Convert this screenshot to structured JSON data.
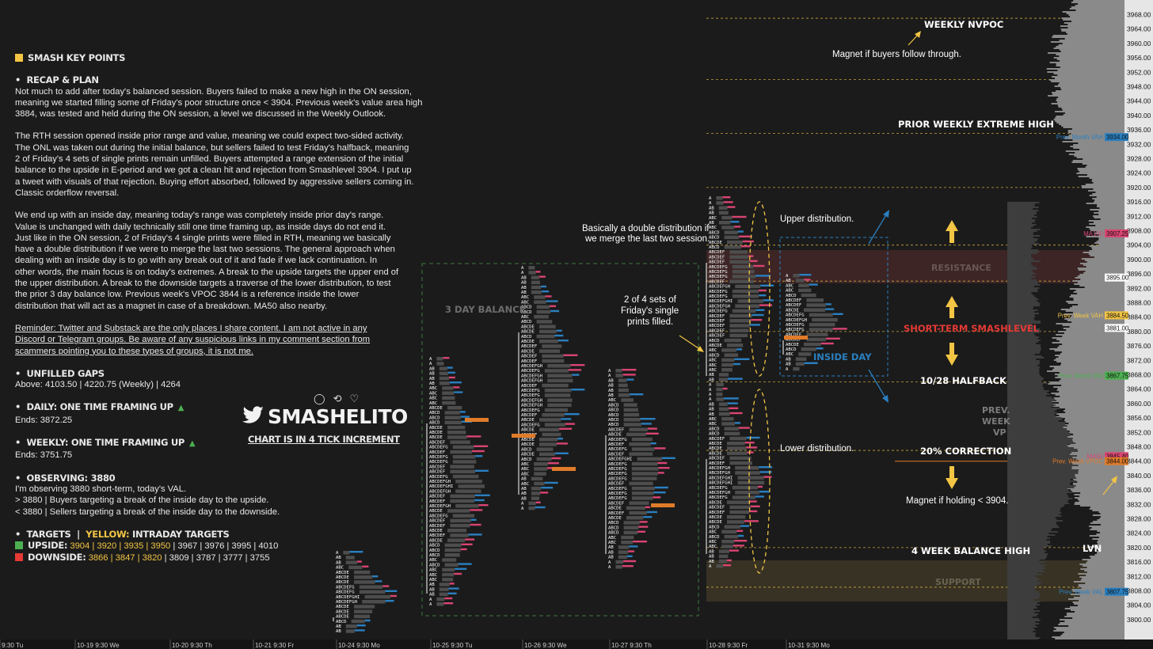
{
  "notes": {
    "key_points_title": "SMASH KEY POINTS",
    "recap_title": "RECAP & PLAN",
    "p1": "Not much to add after today's balanced session. Buyers failed to make a new high in the ON session, meaning we started filling some of Friday's poor structure once < 3904. Previous week's value area high 3884, was tested and held during the ON session, a level we discussed in the Weekly Outlook.",
    "p2": "The RTH session opened inside prior range and value, meaning we could expect two-sided activity. The ONL was taken out during the initial balance, but sellers failed to test Friday's halfback, meaning 2 of Friday's 4 sets of single prints remain unfilled. Buyers attempted a range extension of the initial balance to the upside in E-period and we got a clean hit and rejection from Smashlevel 3904. I put up a tweet with visuals of that rejection. Buying effort absorbed, followed by aggressive sellers coming in. Classic orderflow reversal.",
    "p3": "We end up with an inside day, meaning today's range was completely inside prior day's range. Value is unchanged with daily technically still one time framing up, as inside days do not end it. Just like in the ON session, 2 of Friday's 4 single prints were filled in RTH, meaning we basically have a double distribution if we were to merge the last two sessions. The general approach when dealing with an inside day is to go with any break out of it and fade if we lack continuation. In other words, the main focus is on today's extremes. A break to the upside targets the upper end of the upper distribution. A break to the downside targets a traverse of the lower distribution, to test the prior 3 day balance low. Previous week's VPOC 3844 is a reference inside the lower distribution that will act as a magnet in case of a breakdown. MA50 also nearby.",
    "reminder": "Reminder: Twitter and Substack are the only places I share content. I am not active in any Discord or Telegram groups. Be aware of any suspicious links in my comment section from scammers pointing you to these types of groups, it is not me.",
    "gaps_title": "UNFILLED GAPS",
    "gaps_text": "Above: 4103.50 | 4220.75 (Weekly) | 4264",
    "daily_title": "DAILY: ONE TIME FRAMING UP",
    "daily_ends": "Ends: 3872.25",
    "weekly_title": "WEEKLY: ONE TIME FRAMING UP",
    "weekly_ends": "Ends: 3751.75",
    "observing_title": "OBSERVING: 3880",
    "obs_1": "I'm observing 3880 short-term, today's VAL.",
    "obs_2": "> 3880 | Buyers targeting a break of the inside day to the upside.",
    "obs_3": "< 3880 | Sellers targeting a break of the inside day to the downside.",
    "targets_title": "TARGETS",
    "targets_sep": "|",
    "targets_yellow": "YELLOW:",
    "targets_suffix": "INTRADAY TARGETS",
    "upside_label": "UPSIDE:",
    "upside_yellow": "3904 | 3920 | 3935 | 3950",
    "upside_rest": "| 3967 | 3976 | 3995 | 4010",
    "downside_label": "DOWNSIDE:",
    "downside_yellow": "3866 | 3847 | 3820",
    "downside_rest": "| 3809 | 3787 | 3777 | 3755",
    "bullet": "•",
    "brand": "SMASHELITO",
    "brand_sub": "CHART IS IN 4 TICK INCREMENT",
    "social": "♡ ⟲ ♡",
    "colors": {
      "yellow": "#f3c544",
      "green": "#4caf50",
      "red": "#e53935",
      "blue": "#2a7fc0",
      "pink": "#d94472"
    }
  },
  "chart_data": {
    "type": "market-profile",
    "y_axis": {
      "min": 3800,
      "max": 3972,
      "ticks": [
        3968,
        3964,
        3960,
        3956,
        3952,
        3948,
        3944,
        3940,
        3936,
        3932,
        3928,
        3924,
        3920,
        3916,
        3912,
        3908,
        3904,
        3900,
        3896,
        3892,
        3888,
        3884,
        3880,
        3876,
        3872,
        3868,
        3864,
        3860,
        3856,
        3852,
        3848,
        3844,
        3840,
        3836,
        3832,
        3828,
        3824,
        3820,
        3816,
        3812,
        3808,
        3804,
        3800
      ],
      "tick_labels": [
        "3968.00",
        "3964.00",
        "3960.00",
        "3956.00",
        "3952.00",
        "3948.00",
        "3944.00",
        "3940.00",
        "3936.00",
        "3932.00",
        "3928.00",
        "3924.00",
        "3920.00",
        "3916.00",
        "3912.00",
        "3908.00",
        "3904.00",
        "3900.00",
        "3896.00",
        "3892.00",
        "3888.00",
        "3884.00",
        "3880.00",
        "3876.00",
        "3872.00",
        "3868.00",
        "3864.00",
        "3860.00",
        "3856.00",
        "3852.00",
        "3848.00",
        "3844.00",
        "3840.00",
        "3836.00",
        "3832.00",
        "3828.00",
        "3824.00",
        "3820.00",
        "3816.00",
        "3812.00",
        "3808.00",
        "3804.00",
        "3800.00"
      ]
    },
    "time_labels": [
      "9:30 Tu",
      "10-19  9:30 We",
      "10-20  9:30 Th",
      "10-21  9:30 Fr",
      "10-24  9:30 Mo",
      "10-25  9:30 Tu",
      "10-26  9:30 We",
      "10-27  9:30 Th",
      "10-28  9:30 Fr",
      "10-31  9:30 Mo"
    ],
    "level_lines": [
      3967,
      3950,
      3935,
      3920,
      3904,
      3894,
      3880,
      3866,
      3847,
      3820,
      3809
    ],
    "level_labels": [
      "3967.00",
      "3950.00",
      "3935.00",
      "3920.00",
      "3904.00",
      "3894.00",
      "3880.00",
      "3866.00",
      "3847.00",
      "3820.00",
      "3809.00"
    ],
    "axis_tags": [
      {
        "text": "3934.00",
        "price": 3934,
        "color": "#2a7fc0",
        "side": "Prev. Month VAH"
      },
      {
        "text": "3907.25",
        "price": 3907.25,
        "color": "#d94472",
        "side": "MA100"
      },
      {
        "text": "3884.50",
        "price": 3884.5,
        "color": "#f3c544",
        "side": "Prev. Week VAH"
      },
      {
        "text": "3881.00",
        "price": 3881,
        "color": "#ffffff",
        "side": ""
      },
      {
        "text": "3895.00",
        "price": 3895,
        "color": "#ffffff",
        "side": ""
      },
      {
        "text": "3867.75",
        "price": 3867.75,
        "color": "#4caf50",
        "side": "Prev. Month Mid"
      },
      {
        "text": "3845.40",
        "price": 3845.4,
        "color": "#d94472",
        "side": "MA50"
      },
      {
        "text": "3844.00",
        "price": 3844,
        "color": "#e07b2a",
        "side": "Prev. Week VPOC"
      },
      {
        "text": "3807.75",
        "price": 3807.75,
        "color": "#2a7fc0",
        "side": "Prev. Week VAL"
      }
    ],
    "zone_labels": [
      "WEEKLY NVPOC",
      "Magnet if buyers follow through.",
      "PRIOR WEEKLY EXTREME HIGH",
      "RESISTANCE",
      "SHORT-TERM SMASHLEVEL",
      "10/28 HALFBACK",
      "20% CORRECTION",
      "Magnet if holding < 3904.",
      "4 WEEK BALANCE HIGH",
      "SUPPORT",
      "PREV.",
      "WEEK",
      "VP",
      "LVN"
    ],
    "annotations": [
      "Basically a double distribution if",
      "we merge the last two session.",
      "Upper distribution.",
      "Lower distribution.",
      "2 of 4 sets of",
      "Friday's single",
      "prints filled.",
      "INSIDE DAY",
      "3 DAY BALANCE"
    ]
  }
}
